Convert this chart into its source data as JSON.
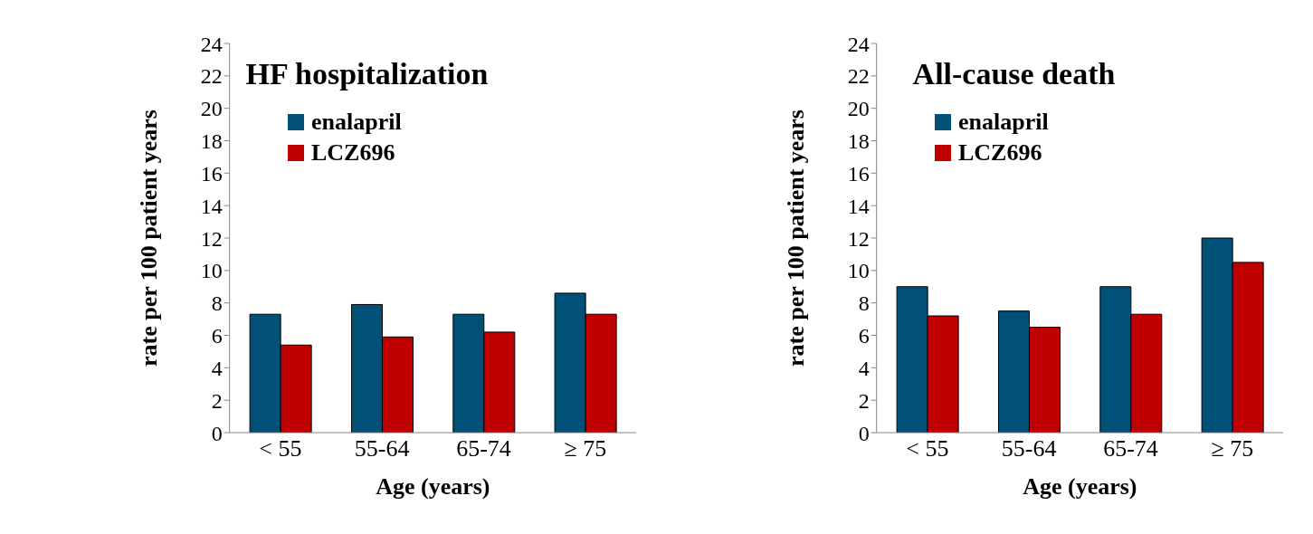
{
  "chart_data": [
    {
      "type": "bar",
      "title": "HF hospitalization",
      "xlabel": "Age (years)",
      "ylabel": "rate per 100 patient years",
      "categories": [
        "< 55",
        "55-64",
        "65-74",
        "≥ 75"
      ],
      "ylim": [
        0,
        24
      ],
      "yticks": [
        0,
        2,
        4,
        6,
        8,
        10,
        12,
        14,
        16,
        18,
        20,
        22,
        24
      ],
      "grid": false,
      "legend": "top left",
      "series": [
        {
          "name": "enalapril",
          "color": "#005078",
          "values": [
            7.3,
            7.9,
            7.3,
            8.6
          ]
        },
        {
          "name": "LCZ696",
          "color": "#c00000",
          "values": [
            5.4,
            5.9,
            6.2,
            7.3
          ]
        }
      ]
    },
    {
      "type": "bar",
      "title": "All-cause death",
      "xlabel": "Age (years)",
      "ylabel": "rate per 100 patient years",
      "categories": [
        "< 55",
        "55-64",
        "65-74",
        "≥ 75"
      ],
      "ylim": [
        0,
        24
      ],
      "yticks": [
        0,
        2,
        4,
        6,
        8,
        10,
        12,
        14,
        16,
        18,
        20,
        22,
        24
      ],
      "grid": false,
      "legend": "top left",
      "series": [
        {
          "name": "enalapril",
          "color": "#005078",
          "values": [
            9.0,
            7.5,
            9.0,
            12.0
          ]
        },
        {
          "name": "LCZ696",
          "color": "#c00000",
          "values": [
            7.2,
            6.5,
            7.3,
            10.5
          ]
        }
      ]
    }
  ]
}
